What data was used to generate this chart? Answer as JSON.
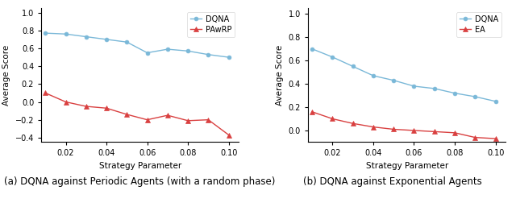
{
  "left": {
    "title": "(a) DQNA against Periodic Agents (with a random phase)",
    "xlabel": "Strategy Parameter",
    "ylabel": "Average Score",
    "ylim": [
      -0.45,
      1.05
    ],
    "xlim": [
      0.008,
      0.105
    ],
    "dqna_x": [
      0.01,
      0.02,
      0.03,
      0.04,
      0.05,
      0.06,
      0.07,
      0.08,
      0.09,
      0.1
    ],
    "dqna_y": [
      0.77,
      0.76,
      0.73,
      0.7,
      0.67,
      0.55,
      0.59,
      0.57,
      0.53,
      0.5
    ],
    "opp_x": [
      0.01,
      0.02,
      0.03,
      0.04,
      0.05,
      0.06,
      0.07,
      0.08,
      0.09,
      0.1
    ],
    "opp_y": [
      0.1,
      0.0,
      -0.05,
      -0.07,
      -0.14,
      -0.2,
      -0.15,
      -0.21,
      -0.2,
      -0.37
    ],
    "dqna_label": "DQNA",
    "opponent_label": "PAwRP",
    "dqna_color": "#7ab8d8",
    "opponent_color": "#d94040",
    "yticks": [
      1.0,
      0.8,
      0.6,
      0.4,
      0.2,
      0.0,
      -0.2,
      -0.4
    ]
  },
  "right": {
    "title": "(b) DQNA against Exponential Agents",
    "xlabel": "Strategy Parameter",
    "ylabel": "Average Score",
    "ylim": [
      -0.1,
      1.05
    ],
    "xlim": [
      0.008,
      0.105
    ],
    "dqna_x": [
      0.01,
      0.02,
      0.03,
      0.04,
      0.05,
      0.06,
      0.07,
      0.08,
      0.09,
      0.1
    ],
    "dqna_y": [
      0.7,
      0.63,
      0.55,
      0.47,
      0.43,
      0.38,
      0.36,
      0.32,
      0.29,
      0.25
    ],
    "opp_x": [
      0.01,
      0.02,
      0.03,
      0.04,
      0.05,
      0.06,
      0.07,
      0.08,
      0.09,
      0.1
    ],
    "opp_y": [
      0.16,
      0.1,
      0.06,
      0.03,
      0.01,
      0.0,
      -0.01,
      -0.02,
      -0.06,
      -0.07
    ],
    "dqna_label": "DQNA",
    "opponent_label": "EA",
    "dqna_color": "#7ab8d8",
    "opponent_color": "#d94040",
    "yticks": [
      1.0,
      0.8,
      0.6,
      0.4,
      0.2,
      0.0
    ]
  },
  "fig_width": 6.4,
  "fig_height": 2.52,
  "xticks": [
    0.02,
    0.04,
    0.06,
    0.08,
    0.1
  ],
  "xtick_labels": [
    "0.02",
    "0.04",
    "0.06",
    "0.08",
    "0.10"
  ]
}
